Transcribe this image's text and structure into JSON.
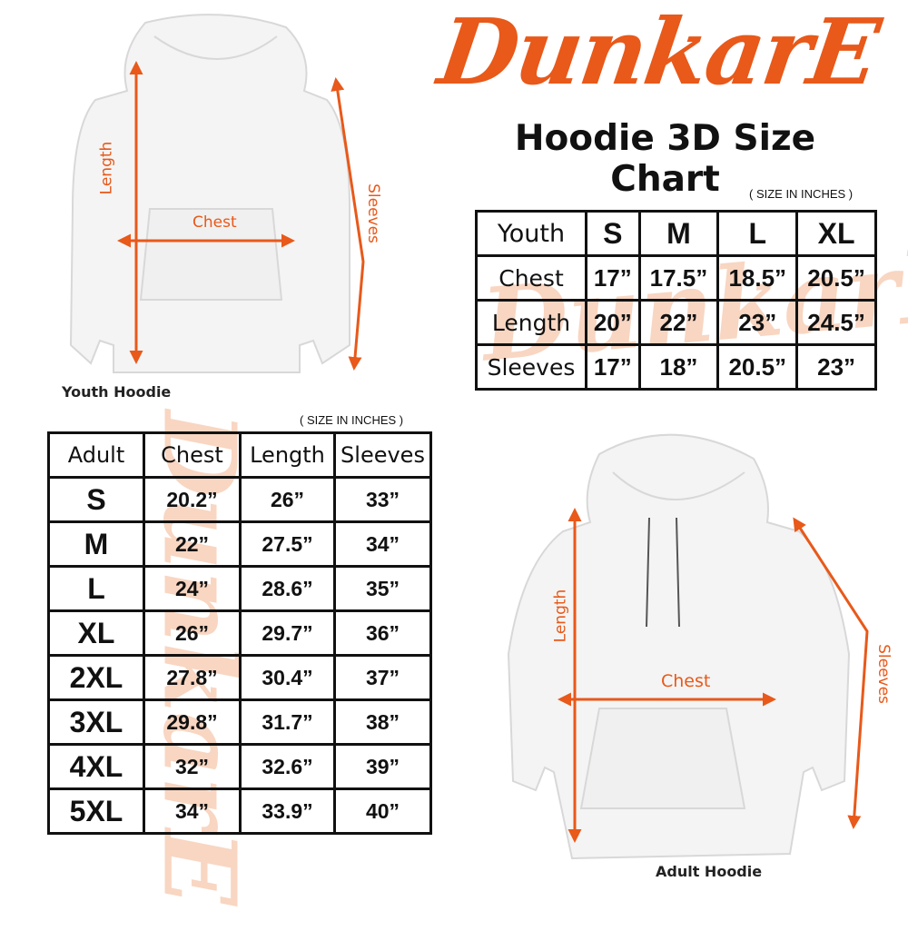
{
  "brand": {
    "logo_text": "DunkarE",
    "color": "#E8591A"
  },
  "title": "Hoodie 3D Size Chart",
  "unit_note": "( SIZE IN INCHES )",
  "youth": {
    "caption": "Youth Hoodie",
    "annotations": {
      "length": "Length",
      "chest": "Chest",
      "sleeves": "Sleeves"
    },
    "table": {
      "headers": [
        "Youth",
        "S",
        "M",
        "L",
        "XL"
      ],
      "rows": [
        [
          "Chest",
          "17”",
          "17.5”",
          "18.5”",
          "20.5”"
        ],
        [
          "Length",
          "20”",
          "22”",
          "23”",
          "24.5”"
        ],
        [
          "Sleeves",
          "17”",
          "18”",
          "20.5”",
          "23”"
        ]
      ]
    }
  },
  "adult": {
    "caption": "Adult Hoodie",
    "annotations": {
      "length": "Length",
      "chest": "Chest",
      "sleeves": "Sleeves"
    },
    "table": {
      "headers": [
        "Adult",
        "Chest",
        "Length",
        "Sleeves"
      ],
      "rows": [
        [
          "S",
          "20.2”",
          "26”",
          "33”"
        ],
        [
          "M",
          "22”",
          "27.5”",
          "34”"
        ],
        [
          "L",
          "24”",
          "28.6”",
          "35”"
        ],
        [
          "XL",
          "26”",
          "29.7”",
          "36”"
        ],
        [
          "2XL",
          "27.8”",
          "30.4”",
          "37”"
        ],
        [
          "3XL",
          "29.8”",
          "31.7”",
          "38”"
        ],
        [
          "4XL",
          "32”",
          "32.6”",
          "39”"
        ],
        [
          "5XL",
          "34”",
          "33.9”",
          "40”"
        ]
      ]
    }
  }
}
